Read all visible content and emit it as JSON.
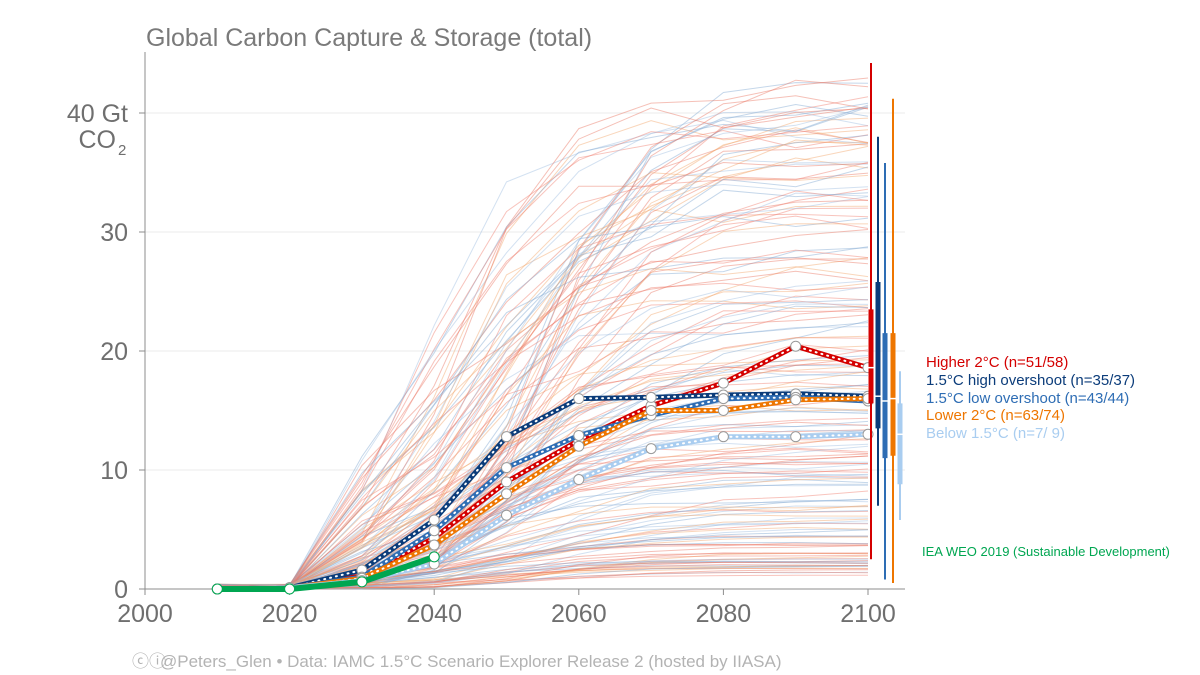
{
  "chart_data": {
    "type": "line",
    "title": "Global Carbon Capture & Storage (total)",
    "ylabel_line1": "40 Gt",
    "ylabel_line2": "CO",
    "ylabel_sub": "2",
    "xlim": [
      2000,
      2105
    ],
    "ylim": [
      0,
      45
    ],
    "x_ticks": [
      2000,
      2020,
      2040,
      2060,
      2080,
      2100
    ],
    "x_tick_labels": [
      "2000",
      "2020",
      "2040",
      "2060",
      "2080",
      "2100"
    ],
    "y_ticks": [
      0,
      10,
      20,
      30
    ],
    "y_tick_labels": [
      "0",
      "10",
      "20",
      "30"
    ],
    "grid": true,
    "series": [
      {
        "name": "Higher 2°C",
        "legend": "Higher 2°C (n=51/58)",
        "color": "#d40000",
        "x": [
          2010,
          2020,
          2030,
          2040,
          2050,
          2060,
          2070,
          2080,
          2090,
          2100
        ],
        "values": [
          0,
          0.1,
          1.1,
          4.3,
          9.0,
          12.5,
          15.4,
          17.3,
          20.4,
          18.6
        ],
        "range": [
          2.5,
          44.2
        ],
        "iqr": [
          15.6,
          23.5
        ]
      },
      {
        "name": "1.5°C high overshoot",
        "legend": "1.5°C high overshoot (n=35/37)",
        "color": "#0b3c7a",
        "x": [
          2010,
          2020,
          2030,
          2040,
          2050,
          2060,
          2070,
          2080,
          2090,
          2100
        ],
        "values": [
          0,
          0.1,
          1.6,
          5.8,
          12.8,
          16.0,
          16.1,
          16.3,
          16.4,
          16.2
        ],
        "range": [
          7.0,
          38.0
        ],
        "iqr": [
          13.5,
          25.8
        ]
      },
      {
        "name": "1.5°C low overshoot",
        "legend": "1.5°C low overshoot (n=43/44)",
        "color": "#2e6db4",
        "x": [
          2010,
          2020,
          2030,
          2040,
          2050,
          2060,
          2070,
          2080,
          2090,
          2100
        ],
        "values": [
          0,
          0.1,
          1.0,
          4.9,
          10.2,
          12.9,
          14.6,
          16.0,
          16.1,
          15.8
        ],
        "range": [
          0.8,
          35.8
        ],
        "iqr": [
          11.0,
          21.5
        ]
      },
      {
        "name": "Lower 2°C",
        "legend": "Lower 2°C (n=63/74)",
        "color": "#ee7600",
        "x": [
          2010,
          2020,
          2030,
          2040,
          2050,
          2060,
          2070,
          2080,
          2090,
          2100
        ],
        "values": [
          0,
          0.1,
          0.9,
          3.7,
          8.0,
          12.0,
          15.0,
          15.0,
          15.9,
          16.0
        ],
        "range": [
          0.5,
          41.2
        ],
        "iqr": [
          11.2,
          21.5
        ]
      },
      {
        "name": "Below 1.5°C",
        "legend": "Below 1.5°C (n=7/ 9)",
        "color": "#a9cdf0",
        "x": [
          2010,
          2020,
          2030,
          2040,
          2050,
          2060,
          2070,
          2080,
          2090,
          2100
        ],
        "values": [
          0,
          0.1,
          0.7,
          2.1,
          6.2,
          9.2,
          11.8,
          12.8,
          12.8,
          13.0
        ],
        "range": [
          5.8,
          18.3
        ],
        "iqr": [
          8.8,
          15.6
        ]
      },
      {
        "name": "IEA WEO 2019",
        "legend": "IEA WEO 2019 (Sustainable Development)",
        "color": "#00a651",
        "x": [
          2010,
          2020,
          2030,
          2040
        ],
        "values": [
          0,
          0,
          0.6,
          2.7
        ]
      }
    ],
    "background_scenarios": "approximately 200 individual scenario pathways drawn as thin translucent lines in red, orange and blue"
  },
  "credit": "@Peters_Glen  •  Data: IAMC 1.5°C Scenario Explorer Release 2 (hosted by IIASA)"
}
